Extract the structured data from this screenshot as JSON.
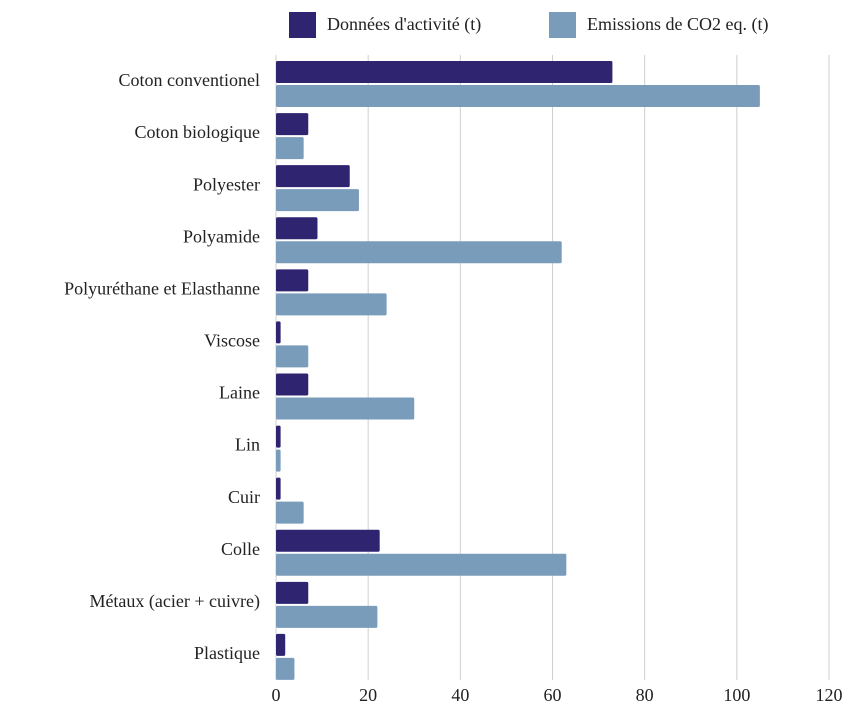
{
  "chart_data": {
    "type": "bar",
    "orientation": "horizontal",
    "categories": [
      "Coton conventionel",
      "Coton biologique",
      "Polyester",
      "Polyamide",
      "Polyuréthane et Elasthanne",
      "Viscose",
      "Laine",
      "Lin",
      "Cuir",
      "Colle",
      "Métaux (acier + cuivre)",
      "Plastique"
    ],
    "series": [
      {
        "name": "Données d'activité (t)",
        "color": "#2e2470",
        "values": [
          73,
          7,
          16,
          9,
          7,
          1,
          7,
          1,
          1,
          22.5,
          7,
          2
        ]
      },
      {
        "name": "Emissions de CO2 eq. (t)",
        "color": "#7a9cbb",
        "values": [
          105,
          6,
          18,
          62,
          24,
          7,
          30,
          1,
          6,
          63,
          22,
          4
        ]
      }
    ],
    "xlim": [
      0,
      120
    ],
    "xticks": [
      0,
      20,
      40,
      60,
      80,
      100,
      120
    ],
    "grid": true,
    "legend": "top"
  }
}
